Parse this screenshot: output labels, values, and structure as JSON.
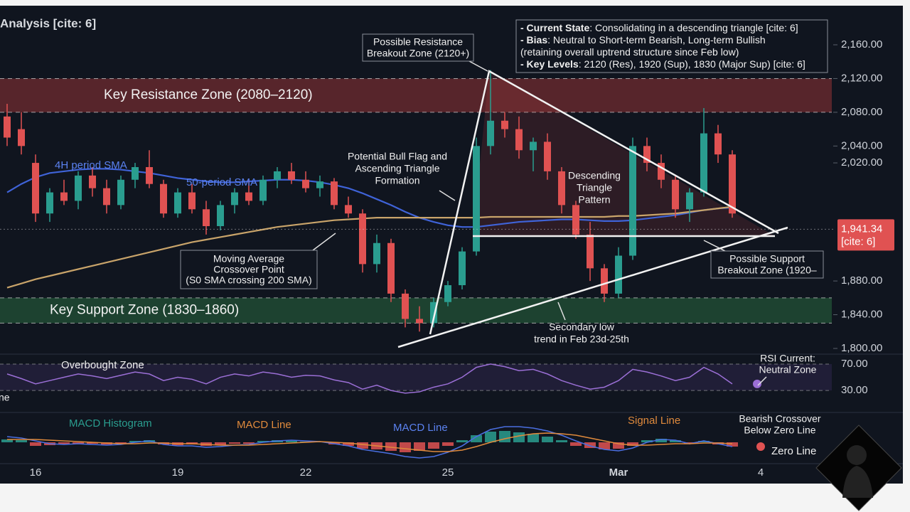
{
  "chart_data": {
    "type": "candlestick",
    "title": "Analysis [cite: 6]",
    "categories": [
      null,
      null,
      "16",
      null,
      null,
      null,
      null,
      null,
      null,
      null,
      null,
      null,
      "19",
      null,
      null,
      null,
      null,
      null,
      null,
      null,
      null,
      "22",
      null,
      null,
      null,
      null,
      null,
      null,
      null,
      null,
      null,
      "25",
      null,
      null,
      null,
      null,
      null,
      null,
      null,
      null,
      null,
      null,
      null,
      "Mar",
      null,
      null,
      null,
      null,
      null,
      null,
      null,
      null,
      null,
      "4"
    ],
    "open": [
      2075,
      2060,
      2020,
      1960,
      1985,
      1975,
      2005,
      1990,
      1970,
      2000,
      2015,
      1995,
      1960,
      1985,
      1965,
      1945,
      1970,
      1985,
      1975,
      2000,
      2010,
      2000,
      1990,
      1998,
      1970,
      1960,
      1900,
      1925,
      1865,
      1835,
      1830,
      1855,
      1875,
      1915,
      2040,
      2070,
      2060,
      2035,
      2045,
      2010,
      1970,
      1935,
      1895,
      1865,
      1910,
      2040,
      2020,
      2000,
      1965,
      1985,
      2055,
      2030,
      null,
      null
    ],
    "high": [
      2090,
      2080,
      2030,
      1990,
      2000,
      2010,
      2015,
      2000,
      2005,
      2020,
      2035,
      2000,
      1990,
      1995,
      1975,
      1975,
      1990,
      2000,
      2005,
      2015,
      2020,
      2010,
      2005,
      2002,
      1980,
      1965,
      1935,
      1930,
      1870,
      1850,
      1860,
      1880,
      1920,
      2050,
      2130,
      2080,
      2075,
      2050,
      2055,
      2015,
      1975,
      1950,
      1900,
      1920,
      2050,
      2050,
      2030,
      2005,
      1990,
      2085,
      2065,
      2035,
      null,
      null
    ],
    "low": [
      2040,
      2030,
      1950,
      1950,
      1970,
      1965,
      1980,
      1960,
      1965,
      1990,
      1990,
      1955,
      1955,
      1960,
      1935,
      1940,
      1960,
      1970,
      1970,
      1990,
      1995,
      1985,
      1980,
      1965,
      1955,
      1890,
      1890,
      1855,
      1825,
      1820,
      1825,
      1850,
      1870,
      1910,
      2030,
      2050,
      2025,
      2010,
      2000,
      1960,
      1930,
      1880,
      1855,
      1860,
      1905,
      2010,
      1990,
      1955,
      1950,
      1980,
      2020,
      1955,
      null,
      null
    ],
    "close": [
      2050,
      2040,
      1960,
      1985,
      1975,
      2005,
      1990,
      1970,
      2000,
      2015,
      1995,
      1960,
      1985,
      1965,
      1945,
      1970,
      1985,
      1975,
      2000,
      2010,
      2000,
      1990,
      1998,
      1970,
      1960,
      1900,
      1925,
      1865,
      1835,
      1830,
      1855,
      1875,
      1915,
      2040,
      2070,
      2060,
      2035,
      2045,
      2010,
      1970,
      1935,
      1895,
      1865,
      1910,
      2040,
      2020,
      2000,
      1965,
      1985,
      2055,
      2030,
      1960,
      null,
      null
    ],
    "up_color": "#2a9d8f",
    "down_color": "#e05252",
    "series": [
      {
        "name": "50-period SMA",
        "color": "#3f63d8",
        "values": [
          1985,
          1995,
          2003,
          2008,
          2010,
          2012,
          2013,
          2013,
          2012,
          2010,
          2008,
          2005,
          2002,
          2000,
          1998,
          1997,
          1997,
          1998,
          1999,
          2000,
          2000,
          1999,
          1997,
          1994,
          1990,
          1984,
          1977,
          1970,
          1962,
          1955,
          1950,
          1946,
          1944,
          1944,
          1946,
          1948,
          1950,
          1951,
          1952,
          1953,
          1953,
          1952,
          1951,
          1951,
          1952,
          1954,
          1956,
          1958,
          1961,
          1964,
          1966,
          1967,
          null,
          null
        ]
      },
      {
        "name": "MA",
        "color": "#c9a46a",
        "values": [
          1872,
          1877,
          1882,
          1886,
          1890,
          1894,
          1898,
          1902,
          1906,
          1910,
          1914,
          1918,
          1922,
          1926,
          1929,
          1932,
          1935,
          1938,
          1941,
          1944,
          1946,
          1948,
          1950,
          1952,
          1953,
          1954,
          1955,
          1955,
          1955,
          1955,
          1955,
          1955,
          1955,
          1955,
          1956,
          1956,
          1956,
          1956,
          1956,
          1956,
          1956,
          1956,
          1956,
          1957,
          1957,
          1958,
          1959,
          1960,
          1962,
          1964,
          1966,
          1968,
          null,
          null
        ]
      }
    ],
    "ylim": [
      1800,
      2160
    ],
    "yticks": [
      {
        "value": 2160,
        "label": "2,160.00"
      },
      {
        "value": 2120,
        "label": "2,120.00"
      },
      {
        "value": 2080,
        "label": "2,080.00"
      },
      {
        "value": 2040,
        "label": "2,040.00"
      },
      {
        "value": 2020,
        "label": "2,020.00"
      },
      {
        "value": 1880,
        "label": "1,880.00"
      },
      {
        "value": 1840,
        "label": "1,840.00"
      },
      {
        "value": 1800,
        "label": "1,800.00"
      }
    ],
    "last_price": {
      "value": 1941.34,
      "label": "1,941.34",
      "note": "[cite: 6]"
    },
    "zones": [
      {
        "name": "Key Resistance Zone (2080–2120)",
        "range": [
          2080,
          2120
        ],
        "color": "#b03a3a"
      },
      {
        "name": "Key Support Zone (1830–1860)",
        "range": [
          1830,
          1860
        ],
        "color": "#2f7a45"
      }
    ],
    "rsi": {
      "color": "#9b6fd6",
      "values": [
        55,
        48,
        40,
        45,
        50,
        55,
        52,
        48,
        53,
        58,
        55,
        45,
        50,
        47,
        40,
        50,
        55,
        52,
        58,
        55,
        50,
        53,
        52,
        46,
        42,
        32,
        38,
        30,
        26,
        28,
        35,
        40,
        50,
        65,
        70,
        66,
        60,
        62,
        55,
        45,
        38,
        32,
        35,
        45,
        62,
        58,
        52,
        45,
        50,
        65,
        55,
        40,
        null,
        null
      ],
      "ylim": [
        0,
        85
      ],
      "yticks": [
        {
          "value": 70,
          "label": "70.00"
        },
        {
          "value": 30,
          "label": "30.00"
        }
      ]
    },
    "macd": {
      "ylim": [
        -30,
        30
      ],
      "histogram": [
        4,
        3,
        -5,
        -4,
        -3,
        -2,
        -2,
        -3,
        -2,
        2,
        3,
        -3,
        -4,
        -3,
        -5,
        -4,
        -2,
        -2,
        2,
        3,
        2,
        1,
        1,
        -3,
        -5,
        -9,
        -10,
        -12,
        -14,
        -12,
        -9,
        -5,
        3,
        10,
        15,
        16,
        14,
        12,
        8,
        3,
        -5,
        -8,
        -10,
        -9,
        -5,
        3,
        5,
        3,
        -2,
        2,
        -3,
        -6,
        null,
        null
      ],
      "macd_line": [
        8,
        6,
        2,
        -2,
        -3,
        -2,
        -3,
        -4,
        -3,
        0,
        2,
        -3,
        -5,
        -5,
        -7,
        -6,
        -4,
        -3,
        0,
        2,
        3,
        2,
        1,
        -2,
        -5,
        -10,
        -13,
        -16,
        -20,
        -22,
        -20,
        -14,
        -5,
        8,
        18,
        22,
        22,
        20,
        16,
        10,
        2,
        -5,
        -10,
        -12,
        -8,
        0,
        4,
        3,
        -2,
        2,
        -2,
        -6,
        null,
        null
      ],
      "signal_line": [
        4,
        4,
        4,
        3,
        2,
        1,
        0,
        -1,
        -2,
        -2,
        -1,
        -1,
        -2,
        -2,
        -3,
        -4,
        -4,
        -4,
        -3,
        -2,
        -1,
        0,
        1,
        0,
        -1,
        -3,
        -5,
        -7,
        -9,
        -11,
        -13,
        -13,
        -11,
        -6,
        0,
        5,
        9,
        12,
        13,
        12,
        10,
        6,
        2,
        -2,
        -4,
        -4,
        -3,
        -2,
        -2,
        -1,
        -1,
        -2,
        null,
        null
      ],
      "macd_color": "#4a6ee0",
      "signal_color": "#e08a3c"
    },
    "info_box": [
      {
        "label": "- Current State",
        "text": ": Consolidating in a descending triangle [cite: 6]"
      },
      {
        "label": "- Bias",
        "text": ": Neutral to Short-term Bearish, Long-term Bullish"
      },
      {
        "text": "(retaining overall uptrend structure since Feb low)"
      },
      {
        "label": "- Key Levels",
        "text": ": 2120 (Res), 1920 (Sup), 1830 (Major Sup) [cite: 6]"
      }
    ],
    "annotations": {
      "resistance_breakout": [
        "Possible Resistance",
        "Breakout Zone (2120+)"
      ],
      "sma_4h": "4H period SMA",
      "sma_50": "50-period SMA",
      "bull_flag": [
        "Potential Bull Flag and",
        "Ascending Triangle",
        "Formation"
      ],
      "crossover": [
        "Moving Average",
        "Crossover Point",
        "(S0 SMA crossing 200 SMA)"
      ],
      "descending": [
        "Descending",
        "Triangle",
        "Pattern"
      ],
      "support_breakout": [
        "Possible Support",
        "Breakout Zone (1920–"
      ],
      "secondary_low": [
        "Secondary low",
        "trend in Feb 23d-25th"
      ],
      "overbought": "Overbought Zone",
      "rsi_left": "ne",
      "rsi_current": [
        "RSI Current:",
        "Neutral Zone"
      ],
      "macd_hist": "MACD Histogram",
      "macd_line_1": "MACD Line",
      "macd_line_2": "MACD Line",
      "signal": "Signal Line",
      "bearish": [
        "Bearish Crossover",
        "Below Zero Line"
      ],
      "zero": "Zero Line"
    }
  }
}
